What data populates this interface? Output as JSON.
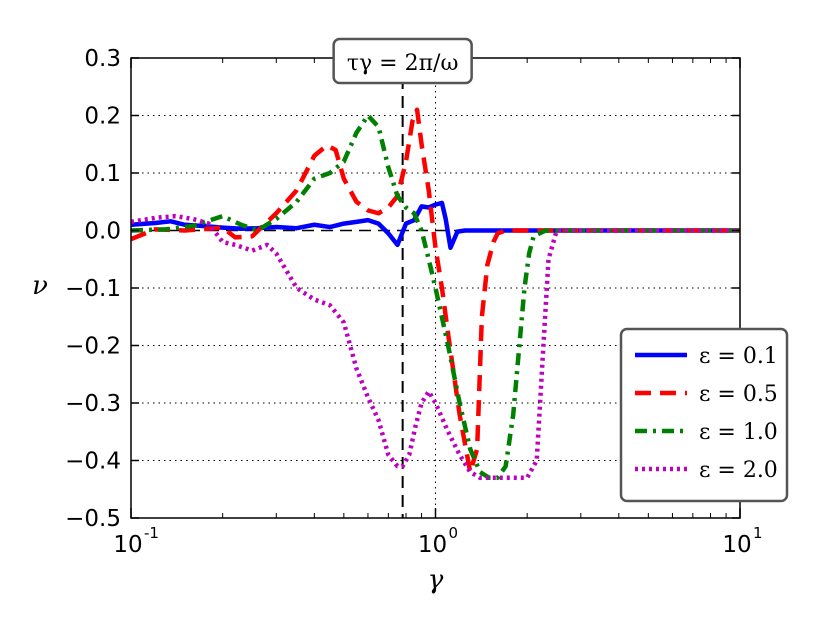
{
  "chart_data": {
    "type": "line",
    "xscale": "log",
    "xlim": [
      0.1,
      10
    ],
    "ylim": [
      -0.5,
      0.3
    ],
    "xlabel": "γ",
    "ylabel": "ν",
    "xticks": [
      {
        "value": 0.1,
        "base": "10",
        "exp": "-1"
      },
      {
        "value": 1,
        "base": "10",
        "exp": "0"
      },
      {
        "value": 10,
        "base": "10",
        "exp": "1"
      }
    ],
    "yticks": [
      {
        "value": 0.3,
        "label": "0.3"
      },
      {
        "value": 0.2,
        "label": "0.2"
      },
      {
        "value": 0.1,
        "label": "0.1"
      },
      {
        "value": 0.0,
        "label": "0.0"
      },
      {
        "value": -0.1,
        "label": "−0.1"
      },
      {
        "value": -0.2,
        "label": "−0.2"
      },
      {
        "value": -0.3,
        "label": "−0.3"
      },
      {
        "value": -0.4,
        "label": "−0.4"
      },
      {
        "value": -0.5,
        "label": "−0.5"
      }
    ],
    "grid": true,
    "reference_lines": {
      "vertical_dashed_x": 0.78,
      "vertical_dotted_x": 1.0,
      "horizontal_dashed_y": 0.0
    },
    "annotation": {
      "text": "τγ = 2π/ω",
      "x": 0.78,
      "position": "top"
    },
    "legend": {
      "location": "lower-right"
    },
    "series": [
      {
        "name": "ε = 0.1",
        "color": "#0000ff",
        "style": "solid",
        "x": [
          0.1,
          0.12,
          0.135,
          0.15,
          0.17,
          0.2,
          0.23,
          0.26,
          0.3,
          0.35,
          0.4,
          0.45,
          0.5,
          0.55,
          0.6,
          0.65,
          0.7,
          0.75,
          0.8,
          0.85,
          0.9,
          0.95,
          1.0,
          1.05,
          1.08,
          1.12,
          1.18,
          1.25,
          1.4,
          1.6,
          2.0,
          3.0,
          5.0,
          10.0
        ],
        "y": [
          0.01,
          0.013,
          0.016,
          0.01,
          0.008,
          0.005,
          0.003,
          0.004,
          0.006,
          0.004,
          0.01,
          0.006,
          0.012,
          0.015,
          0.018,
          0.012,
          -0.005,
          -0.025,
          0.012,
          0.018,
          0.042,
          0.04,
          0.045,
          0.048,
          0.02,
          -0.03,
          -0.002,
          0.0,
          0.0,
          0.0,
          0.0,
          0.0,
          0.0,
          0.0
        ]
      },
      {
        "name": "ε = 0.5",
        "color": "#ff0000",
        "style": "dashed",
        "x": [
          0.1,
          0.12,
          0.15,
          0.18,
          0.2,
          0.22,
          0.25,
          0.3,
          0.35,
          0.4,
          0.44,
          0.47,
          0.5,
          0.55,
          0.6,
          0.65,
          0.7,
          0.75,
          0.8,
          0.84,
          0.87,
          0.9,
          0.95,
          1.0,
          1.05,
          1.1,
          1.2,
          1.3,
          1.37,
          1.42,
          1.48,
          1.55,
          1.6,
          1.7,
          2.0,
          5.0,
          10.0
        ],
        "y": [
          -0.015,
          0.002,
          0.0,
          0.003,
          0.005,
          -0.012,
          -0.01,
          0.03,
          0.07,
          0.13,
          0.148,
          0.14,
          0.09,
          0.05,
          0.035,
          0.03,
          0.04,
          0.06,
          0.12,
          0.19,
          0.21,
          0.15,
          0.07,
          -0.03,
          -0.1,
          -0.18,
          -0.32,
          -0.42,
          -0.38,
          -0.15,
          -0.06,
          -0.02,
          -0.005,
          0.0,
          0.0,
          0.0,
          0.0
        ]
      },
      {
        "name": "ε = 1.0",
        "color": "#008000",
        "style": "dashdot",
        "x": [
          0.1,
          0.13,
          0.16,
          0.2,
          0.23,
          0.26,
          0.3,
          0.35,
          0.4,
          0.45,
          0.5,
          0.55,
          0.6,
          0.65,
          0.7,
          0.75,
          0.8,
          0.85,
          0.9,
          0.95,
          1.0,
          1.1,
          1.2,
          1.3,
          1.4,
          1.5,
          1.6,
          1.7,
          1.8,
          1.9,
          1.96,
          2.03,
          2.1,
          2.3,
          3.0,
          10.0
        ],
        "y": [
          0.0,
          0.002,
          0.008,
          0.025,
          0.01,
          0.0,
          0.02,
          0.05,
          0.09,
          0.1,
          0.12,
          0.17,
          0.2,
          0.18,
          0.11,
          0.06,
          0.04,
          0.03,
          0.0,
          -0.05,
          -0.1,
          -0.2,
          -0.3,
          -0.38,
          -0.42,
          -0.43,
          -0.43,
          -0.41,
          -0.32,
          -0.18,
          -0.1,
          -0.04,
          -0.01,
          0.0,
          0.0,
          0.0
        ]
      },
      {
        "name": "ε = 2.0",
        "color": "#bf00bf",
        "style": "dotted",
        "x": [
          0.1,
          0.12,
          0.14,
          0.16,
          0.18,
          0.2,
          0.22,
          0.25,
          0.28,
          0.3,
          0.32,
          0.35,
          0.4,
          0.45,
          0.5,
          0.55,
          0.6,
          0.65,
          0.7,
          0.75,
          0.78,
          0.82,
          0.86,
          0.9,
          0.95,
          1.0,
          1.1,
          1.2,
          1.3,
          1.4,
          1.6,
          1.8,
          2.0,
          2.15,
          2.25,
          2.35,
          2.5,
          3.0,
          10.0
        ],
        "y": [
          0.015,
          0.022,
          0.025,
          0.02,
          0.012,
          -0.02,
          -0.025,
          -0.035,
          -0.025,
          -0.04,
          -0.065,
          -0.1,
          -0.12,
          -0.13,
          -0.16,
          -0.24,
          -0.29,
          -0.33,
          -0.39,
          -0.41,
          -0.41,
          -0.39,
          -0.34,
          -0.3,
          -0.28,
          -0.3,
          -0.35,
          -0.39,
          -0.42,
          -0.43,
          -0.43,
          -0.43,
          -0.43,
          -0.4,
          -0.22,
          -0.05,
          0.0,
          0.0,
          0.0
        ]
      }
    ]
  }
}
